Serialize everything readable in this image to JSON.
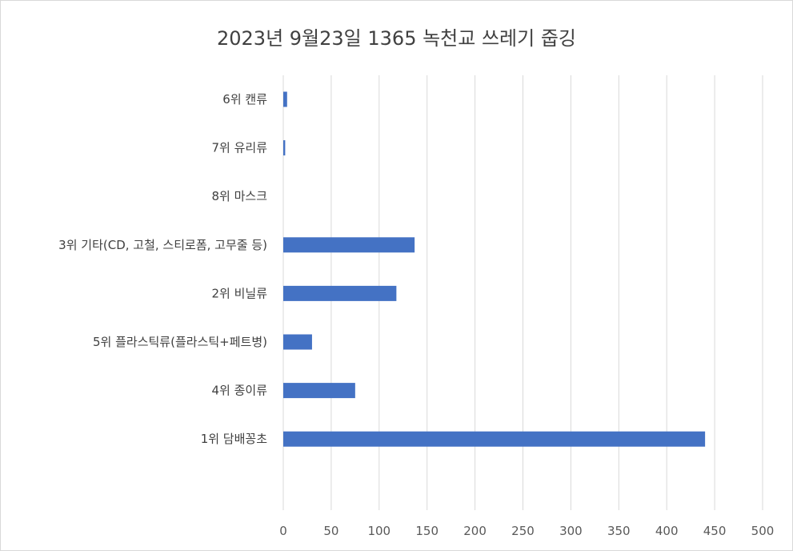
{
  "chart_data": {
    "type": "bar",
    "orientation": "horizontal",
    "title": "2023년 9월23일 1365 녹천교 쓰레기 줍깅",
    "categories": [
      "6위 캔류",
      "7위 유리류",
      "8위 마스크",
      "3위 기타(CD, 고철, 스티로폼, 고무줄 등)",
      "2위 비닐류",
      "5위 플라스틱류(플라스틱+페트병)",
      "4위 종이류",
      "1위 담배꽁초"
    ],
    "values": [
      4,
      2,
      0,
      137,
      118,
      30,
      75,
      440
    ],
    "xlim": [
      0,
      500
    ],
    "xticks": [
      0,
      50,
      100,
      150,
      200,
      250,
      300,
      350,
      400,
      450,
      500
    ],
    "grid": true,
    "bar_color": "#4472c4",
    "grid_color": "#d9d9d9"
  }
}
